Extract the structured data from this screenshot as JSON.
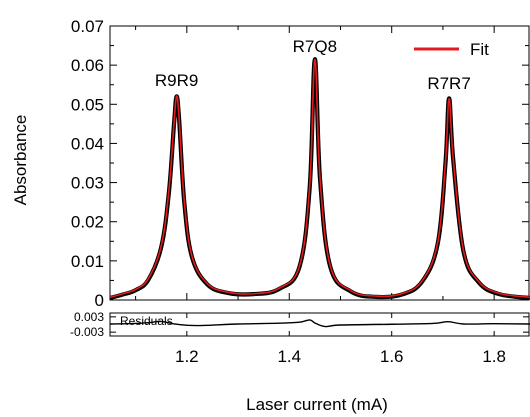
{
  "chart_data": {
    "type": "line",
    "xlabel": "Laser current (mA)",
    "ylabel": "Absorbance",
    "xlim": [
      1.05,
      1.87
    ],
    "ylim": [
      0,
      0.07
    ],
    "x_ticks": [
      1.2,
      1.4,
      1.6,
      1.8
    ],
    "x_tick_labels": [
      "1.2",
      "1.4",
      "1.6",
      "1.8"
    ],
    "y_ticks": [
      0,
      0.01,
      0.02,
      0.03,
      0.04,
      0.05,
      0.06,
      0.07
    ],
    "y_tick_labels": [
      "0",
      "0.01",
      "0.02",
      "0.03",
      "0.04",
      "0.05",
      "0.06",
      "0.07"
    ],
    "grid": false,
    "legend": {
      "position": "top-right",
      "entries": [
        {
          "label": "Fit",
          "color": "#e41a1c"
        }
      ]
    },
    "peaks": [
      {
        "label": "R9R9",
        "x": 1.18,
        "y": 0.052
      },
      {
        "label": "R7Q8",
        "x": 1.45,
        "y": 0.0615
      },
      {
        "label": "R7R7",
        "x": 1.712,
        "y": 0.0515
      }
    ],
    "series": [
      {
        "name": "",
        "role": "data",
        "color": "#000000",
        "x": [
          1.05,
          1.075,
          1.1,
          1.125,
          1.15,
          1.165,
          1.175,
          1.18,
          1.185,
          1.195,
          1.21,
          1.24,
          1.28,
          1.33,
          1.38,
          1.42,
          1.44,
          1.45,
          1.46,
          1.48,
          1.52,
          1.57,
          1.62,
          1.66,
          1.69,
          1.705,
          1.712,
          1.72,
          1.74,
          1.77,
          1.81,
          1.87
        ],
        "y": [
          0.0005,
          0.0014,
          0.0025,
          0.0052,
          0.0135,
          0.0275,
          0.045,
          0.052,
          0.046,
          0.025,
          0.011,
          0.004,
          0.0018,
          0.0015,
          0.0028,
          0.0085,
          0.029,
          0.0615,
          0.031,
          0.0085,
          0.0022,
          0.0008,
          0.0014,
          0.0048,
          0.0145,
          0.035,
          0.0515,
          0.036,
          0.0125,
          0.0045,
          0.0015,
          0.0005
        ]
      },
      {
        "name": "Fit",
        "role": "fit",
        "color": "#e41a1c",
        "x": [
          1.05,
          1.075,
          1.1,
          1.125,
          1.15,
          1.165,
          1.175,
          1.18,
          1.185,
          1.195,
          1.21,
          1.24,
          1.28,
          1.33,
          1.38,
          1.42,
          1.44,
          1.45,
          1.46,
          1.48,
          1.52,
          1.57,
          1.62,
          1.66,
          1.69,
          1.705,
          1.712,
          1.72,
          1.74,
          1.77,
          1.81,
          1.87
        ],
        "y": [
          0.0007,
          0.0016,
          0.0027,
          0.0055,
          0.0138,
          0.028,
          0.0452,
          0.0521,
          0.0462,
          0.0253,
          0.0112,
          0.0042,
          0.002,
          0.0016,
          0.003,
          0.0087,
          0.0293,
          0.0614,
          0.0312,
          0.0087,
          0.0024,
          0.001,
          0.0016,
          0.005,
          0.0148,
          0.0352,
          0.0514,
          0.0362,
          0.0127,
          0.0047,
          0.0017,
          0.0007
        ]
      }
    ],
    "residuals": {
      "label": "Residuals",
      "ylim": [
        -0.0045,
        0.0045
      ],
      "y_ticks": [
        0.003,
        -0.003
      ],
      "y_tick_labels": [
        "0.003",
        "-0.003"
      ],
      "x": [
        1.05,
        1.1,
        1.13,
        1.15,
        1.18,
        1.22,
        1.3,
        1.38,
        1.42,
        1.44,
        1.45,
        1.47,
        1.5,
        1.6,
        1.68,
        1.71,
        1.74,
        1.8,
        1.87
      ],
      "y": [
        0.0002,
        0.0004,
        0.0008,
        0.0012,
        0.0001,
        -0.0004,
        0.0002,
        0.0005,
        0.0009,
        0.0018,
        0.0006,
        -0.0008,
        -0.0002,
        0.0001,
        0.0004,
        0.0011,
        0.0002,
        0.0003,
        0.0002
      ]
    }
  }
}
